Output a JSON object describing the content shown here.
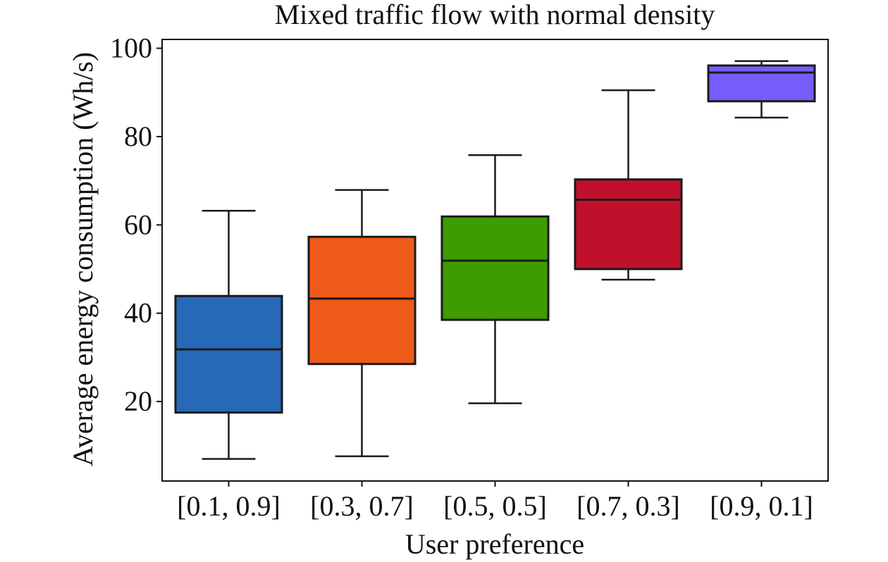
{
  "chart_data": {
    "type": "box",
    "title": "Mixed traffic flow with normal density",
    "xlabel": "User preference",
    "ylabel": "Average energy consumption (Wh/s)",
    "ylim": [
      2,
      102
    ],
    "yticks": [
      20,
      40,
      60,
      80,
      100
    ],
    "grid": false,
    "legend": "none",
    "categories": [
      "[0.1, 0.9]",
      "[0.3, 0.7]",
      "[0.5, 0.5]",
      "[0.7, 0.3]",
      "[0.9, 0.1]"
    ],
    "boxes": [
      {
        "category": "[0.1, 0.9]",
        "min": 7.0,
        "q1": 17.5,
        "median": 31.8,
        "q3": 43.9,
        "max": 63.2,
        "color": "#2769B8"
      },
      {
        "category": "[0.3, 0.7]",
        "min": 7.6,
        "q1": 28.5,
        "median": 43.3,
        "q3": 57.3,
        "max": 67.9,
        "color": "#EE5A18"
      },
      {
        "category": "[0.5, 0.5]",
        "min": 19.6,
        "q1": 38.5,
        "median": 51.9,
        "q3": 61.9,
        "max": 75.8,
        "color": "#3E9B00"
      },
      {
        "category": "[0.7, 0.3]",
        "min": 47.6,
        "q1": 50.0,
        "median": 65.7,
        "q3": 70.3,
        "max": 90.5,
        "color": "#C1102C"
      },
      {
        "category": "[0.9, 0.1]",
        "min": 84.3,
        "q1": 88.0,
        "median": 94.5,
        "q3": 96.1,
        "max": 97.1,
        "color": "#765CF8"
      }
    ]
  }
}
